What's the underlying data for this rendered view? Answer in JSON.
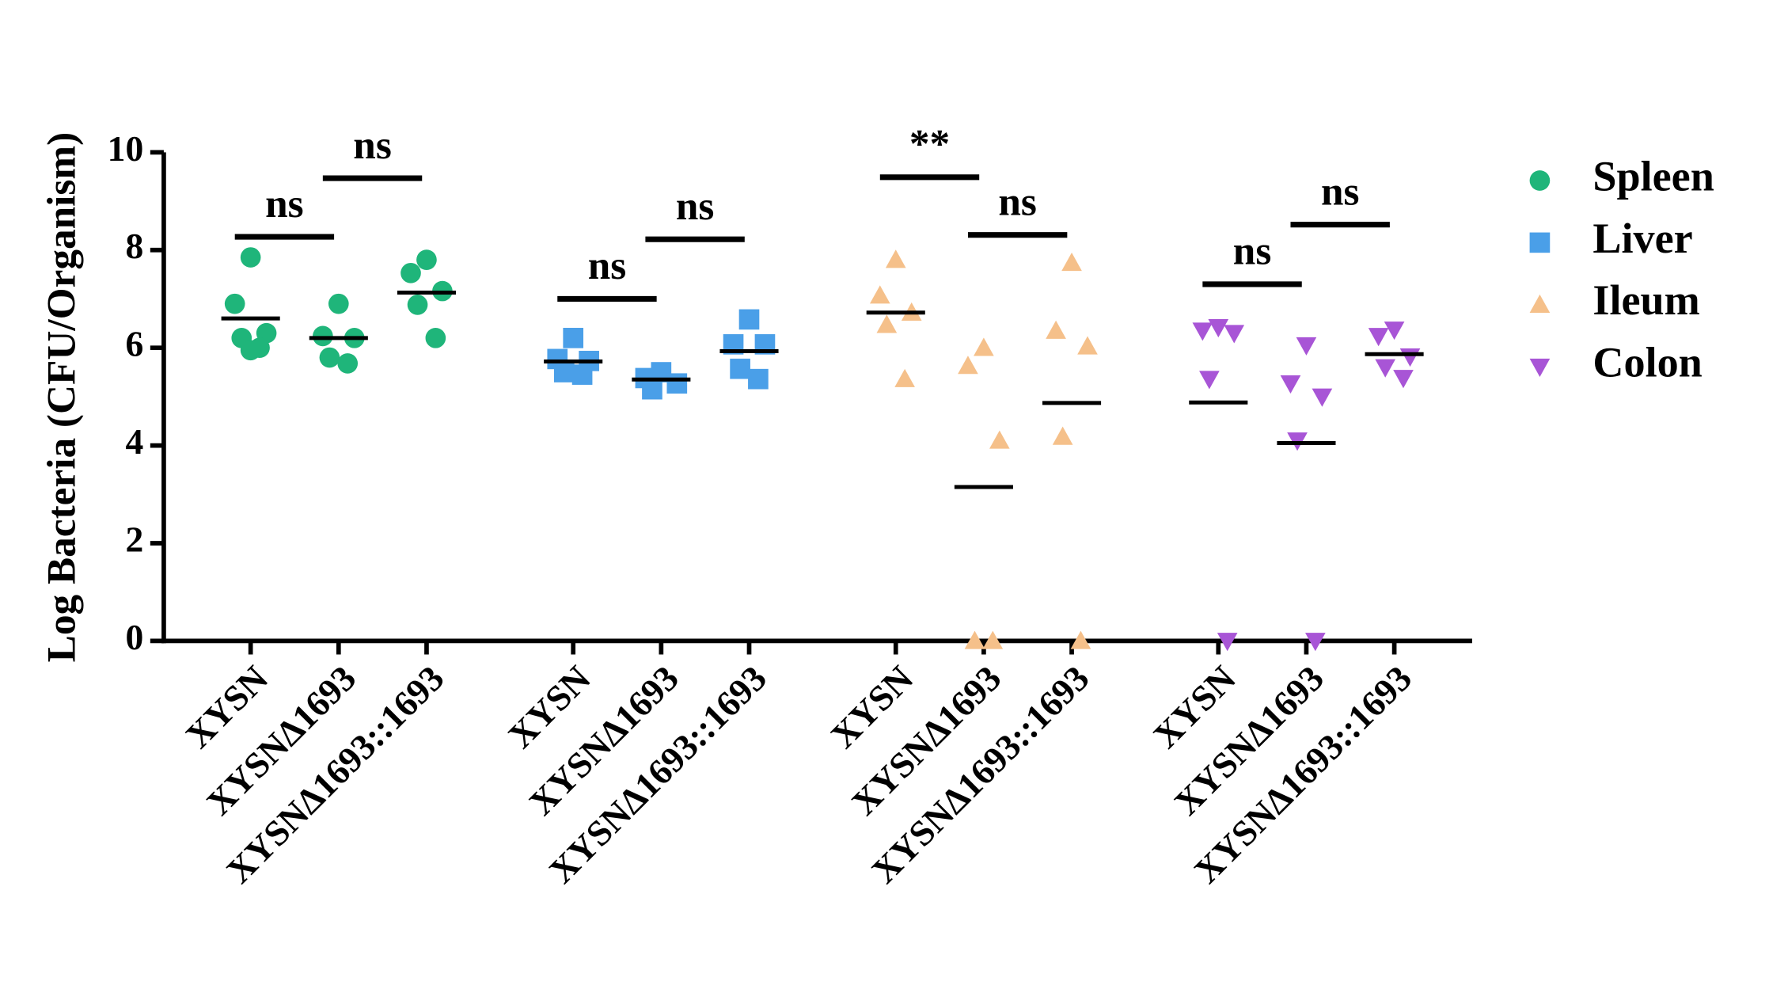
{
  "chart_data": {
    "type": "scatter",
    "y_label": "Log Bacteria (CFU/Organism)",
    "categories": [
      "XYSN",
      "XYSNΔ1693",
      "XYSNΔ1693::1693",
      "XYSN",
      "XYSNΔ1693",
      "XYSNΔ1693::1693",
      "XYSN",
      "XYSNΔ1693",
      "XYSNΔ1693::1693",
      "XYSN",
      "XYSNΔ1693",
      "XYSNΔ1693::1693"
    ],
    "ylim": [
      0,
      10
    ],
    "yticks": [
      0,
      2,
      4,
      6,
      8,
      10
    ],
    "legend": "right",
    "series": [
      {
        "name": "Spleen",
        "color": "#1fb57a",
        "marker": "circle",
        "values": [
          [
            7.85,
            6.9,
            6.3,
            6.2,
            6.0,
            5.95
          ],
          [
            6.9,
            6.24,
            6.2,
            5.8,
            5.68
          ],
          [
            7.8,
            7.53,
            7.16,
            6.88,
            6.2
          ]
        ],
        "means": [
          6.6,
          6.2,
          7.13
        ]
      },
      {
        "name": "Liver",
        "color": "#4a9fe8",
        "marker": "square",
        "values": [
          [
            6.2,
            5.77,
            5.73,
            5.5,
            5.45
          ],
          [
            5.5,
            5.38,
            5.27,
            5.15
          ],
          [
            6.58,
            6.07,
            6.07,
            5.57,
            5.36
          ]
        ],
        "means": [
          5.72,
          5.35,
          5.93
        ]
      },
      {
        "name": "Ileum",
        "color": "#f5c08a",
        "marker": "triangle-up",
        "values": [
          [
            7.8,
            7.07,
            6.72,
            6.47,
            5.36
          ],
          [
            6.0,
            5.63,
            4.1,
            0,
            0
          ],
          [
            7.74,
            6.35,
            6.03,
            4.18,
            0
          ]
        ],
        "means": [
          6.72,
          3.15,
          4.87
        ]
      },
      {
        "name": "Colon",
        "color": "#a855d6",
        "marker": "triangle-down",
        "values": [
          [
            6.42,
            6.35,
            6.3,
            5.36,
            0
          ],
          [
            6.05,
            5.27,
            5.0,
            4.1,
            0
          ],
          [
            6.37,
            6.24,
            5.82,
            5.6,
            5.38
          ]
        ],
        "means": [
          4.88,
          4.05,
          5.87
        ]
      }
    ],
    "annotations": [
      {
        "label": "ns",
        "from": 0,
        "to": 1,
        "y": 8.27
      },
      {
        "label": "ns",
        "from": 1,
        "to": 2,
        "y": 9.47
      },
      {
        "label": "ns",
        "from": 3,
        "to": 4,
        "y": 7.0
      },
      {
        "label": "ns",
        "from": 4,
        "to": 5,
        "y": 8.22
      },
      {
        "label": "**",
        "from": 6,
        "to": 7,
        "y": 9.49
      },
      {
        "label": "ns",
        "from": 7,
        "to": 8,
        "y": 8.31
      },
      {
        "label": "ns",
        "from": 9,
        "to": 10,
        "y": 7.3
      },
      {
        "label": "ns",
        "from": 10,
        "to": 11,
        "y": 8.52
      }
    ]
  }
}
